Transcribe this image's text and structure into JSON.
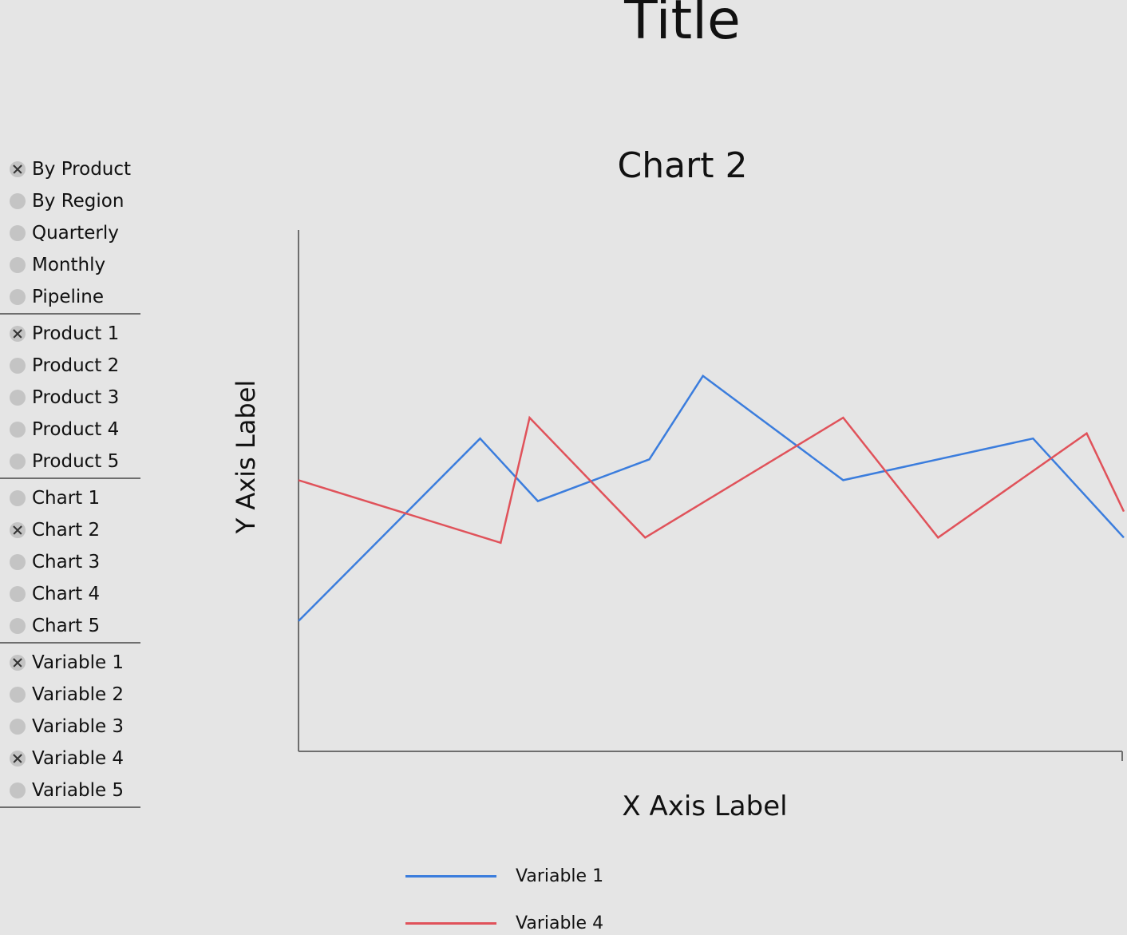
{
  "header": {
    "title": "Title"
  },
  "sidebar": {
    "groups": [
      {
        "options": [
          {
            "label": "By Product",
            "checked": true
          },
          {
            "label": "By Region",
            "checked": false
          },
          {
            "label": "Quarterly",
            "checked": false
          },
          {
            "label": "Monthly",
            "checked": false
          },
          {
            "label": "Pipeline",
            "checked": false
          }
        ]
      },
      {
        "options": [
          {
            "label": "Product 1",
            "checked": true
          },
          {
            "label": "Product 2",
            "checked": false
          },
          {
            "label": "Product 3",
            "checked": false
          },
          {
            "label": "Product 4",
            "checked": false
          },
          {
            "label": "Product 5",
            "checked": false
          }
        ]
      },
      {
        "options": [
          {
            "label": "Chart 1",
            "checked": false
          },
          {
            "label": "Chart 2",
            "checked": true
          },
          {
            "label": "Chart 3",
            "checked": false
          },
          {
            "label": "Chart 4",
            "checked": false
          },
          {
            "label": "Chart 5",
            "checked": false
          }
        ]
      },
      {
        "options": [
          {
            "label": "Variable 1",
            "checked": true
          },
          {
            "label": "Variable 2",
            "checked": false
          },
          {
            "label": "Variable 3",
            "checked": false
          },
          {
            "label": "Variable 4",
            "checked": true
          },
          {
            "label": "Variable 5",
            "checked": false
          }
        ]
      }
    ]
  },
  "chart_data": {
    "type": "line",
    "title": "Chart 2",
    "xlabel": "X Axis Label",
    "ylabel": "Y Axis Label",
    "xlim": [
      0,
      100
    ],
    "ylim": [
      0,
      100
    ],
    "grid": false,
    "legend_position": "bottom",
    "series": [
      {
        "name": "Variable 1",
        "color": "#3b7ddd",
        "x": [
          0,
          22,
          29,
          42.5,
          49,
          66,
          89,
          100
        ],
        "y": [
          25,
          60,
          48,
          56,
          72,
          52,
          60,
          41
        ]
      },
      {
        "name": "Variable 4",
        "color": "#e0525a",
        "x": [
          0,
          24.5,
          28,
          42,
          66,
          77.5,
          95.5,
          100
        ],
        "y": [
          52,
          40,
          64,
          41,
          64,
          41,
          61,
          46
        ]
      }
    ]
  }
}
